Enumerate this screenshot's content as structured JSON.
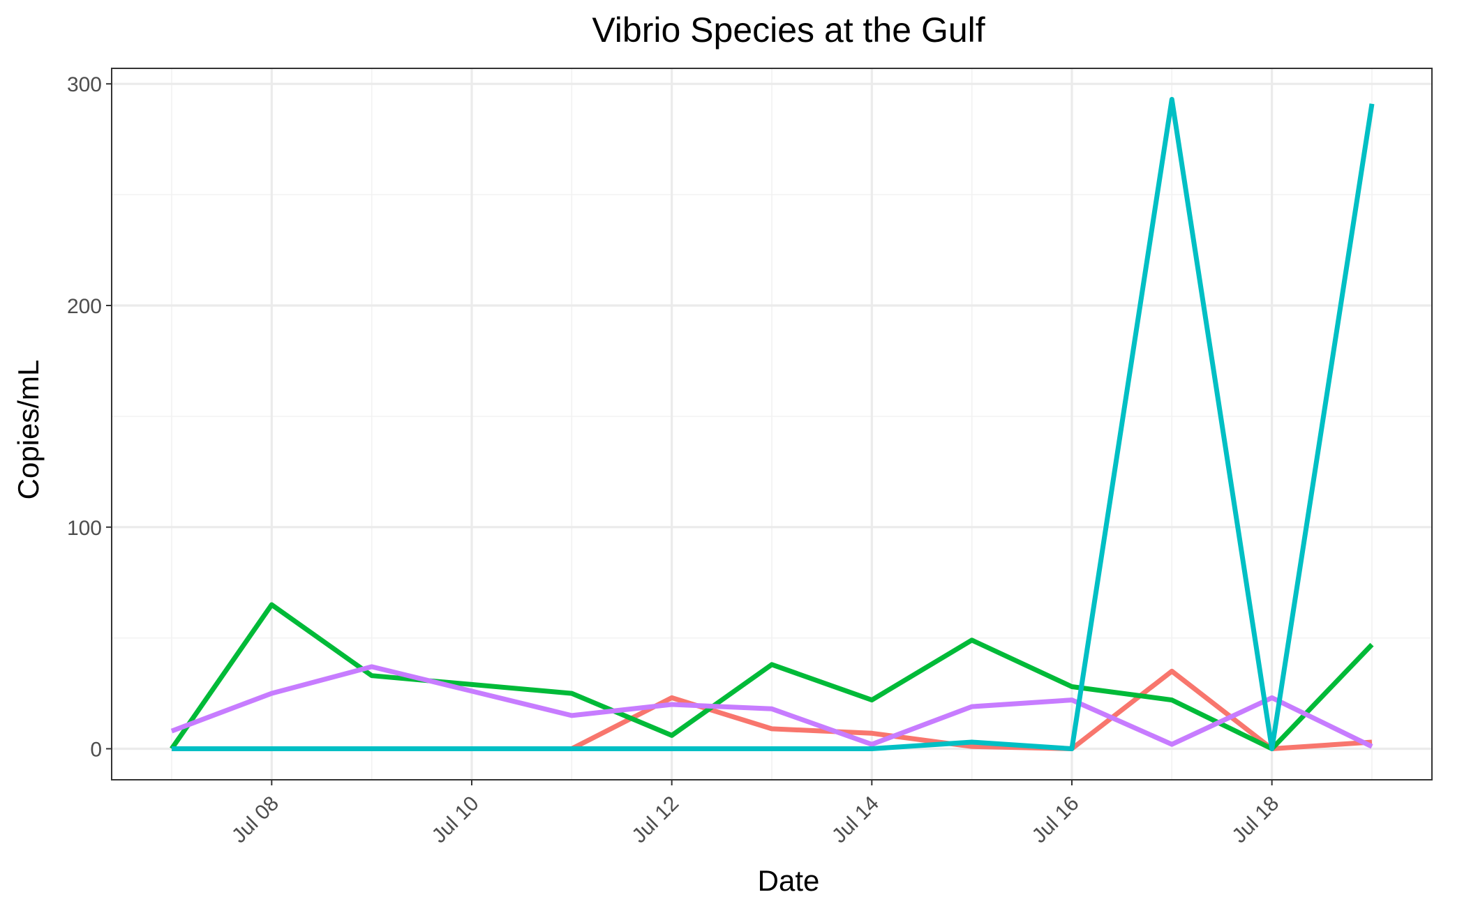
{
  "chart_data": {
    "type": "line",
    "title": "Vibrio Species at the Gulf",
    "xlabel": "Date",
    "ylabel": "Copies/mL",
    "x": [
      "Jul 07",
      "Jul 08",
      "Jul 09",
      "Jul 10",
      "Jul 11",
      "Jul 12",
      "Jul 13",
      "Jul 14",
      "Jul 15",
      "Jul 16",
      "Jul 17",
      "Jul 18",
      "Jul 19"
    ],
    "x_ticks": [
      "Jul 08",
      "Jul 10",
      "Jul 12",
      "Jul 14",
      "Jul 16",
      "Jul 18"
    ],
    "xlim": [
      "Jul 06.4",
      "Jul 19.6"
    ],
    "y_ticks": [
      0,
      100,
      200,
      300
    ],
    "ylim": [
      -14,
      307
    ],
    "grid": true,
    "legend": "none",
    "series": [
      {
        "color": "#F8766D",
        "values": [
          null,
          null,
          null,
          null,
          0,
          23,
          9,
          7,
          1,
          0,
          35,
          0,
          3
        ]
      },
      {
        "color": "#00BA38",
        "values": [
          0,
          65,
          33,
          29,
          25,
          6,
          38,
          22,
          49,
          28,
          22,
          0,
          47
        ]
      },
      {
        "color": "#C77CFF",
        "values": [
          8,
          25,
          37,
          26,
          15,
          20,
          18,
          2,
          19,
          22,
          2,
          23,
          1
        ]
      },
      {
        "color": "#00BFC4",
        "values": [
          0,
          0,
          0,
          0,
          0,
          0,
          0,
          0,
          3,
          0,
          293,
          0,
          291
        ]
      }
    ]
  }
}
